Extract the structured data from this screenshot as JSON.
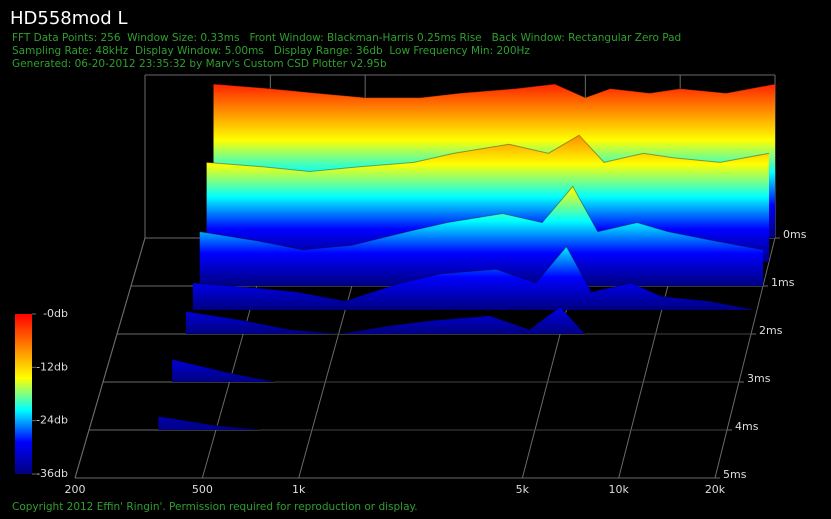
{
  "chart_data": {
    "type": "waterfall",
    "title": "HD558mod L",
    "notes": [
      "FFT Data Points: 256  Window Size: 0.33ms   Front Window: Blackman-Harris 0.25ms Rise   Back Window: Rectangular Zero Pad",
      "Sampling Rate: 48kHz  Display Window: 5.00ms   Display Range: 36db  Low Frequency Min: 200Hz",
      "Generated: 06-20-2012 23:35:32 by Marv's Custom CSD Plotter v2.95b"
    ],
    "footer": "Copyright 2012 Effin' Ringin'. Permission required for reproduction or display.",
    "log_x": true,
    "xlim": [
      200,
      20000
    ],
    "xticks": [
      200,
      500,
      {
        "value": 1000,
        "label": "1k"
      },
      {
        "value": 5000,
        "label": "5k"
      },
      {
        "value": 10000,
        "label": "10k"
      },
      {
        "value": 20000,
        "label": "20k"
      }
    ],
    "zlim": [
      0,
      5
    ],
    "zticks": [
      {
        "value": 0,
        "label": "0ms"
      },
      {
        "value": 1,
        "label": "1ms"
      },
      {
        "value": 2,
        "label": "2ms"
      },
      {
        "value": 3,
        "label": "3ms"
      },
      {
        "value": 4,
        "label": "4ms"
      },
      {
        "value": 5,
        "label": "5ms"
      }
    ],
    "ylim": [
      -36,
      0
    ],
    "yticks": [
      {
        "value": 0,
        "label": "-0db"
      },
      {
        "value": -12,
        "label": "-12db"
      },
      {
        "value": -24,
        "label": "-24db"
      },
      {
        "value": -36,
        "label": "-36db"
      }
    ],
    "colormap": [
      "#00007f",
      "#0000ff",
      "#00ffff",
      "#ffff00",
      "#ff7f00",
      "#ff0000"
    ],
    "x": [
      330,
      500,
      700,
      1000,
      1500,
      2000,
      3000,
      4000,
      5000,
      6000,
      8000,
      10000,
      14000,
      20000
    ],
    "slices": [
      {
        "t": 0,
        "values": [
          -2,
          -3,
          -4,
          -5,
          -5,
          -4,
          -3,
          -2,
          -5,
          -3,
          -4,
          -3,
          -4,
          -2
        ]
      },
      {
        "t": 0.5,
        "values": [
          -14,
          -15,
          -16,
          -15,
          -14,
          -12,
          -10,
          -12,
          -8,
          -14,
          -12,
          -13,
          -14,
          -12
        ]
      },
      {
        "t": 1,
        "values": [
          -24,
          -26,
          -28,
          -27,
          -24,
          -22,
          -20,
          -22,
          -14,
          -24,
          -22,
          -24,
          -26,
          -28
        ]
      },
      {
        "t": 1.5,
        "values": [
          -30,
          -31,
          -32,
          -34,
          -30,
          -28,
          -27,
          -30,
          -22,
          -32,
          -30,
          -33,
          -34,
          -36
        ]
      },
      {
        "t": 2,
        "values": [
          -31,
          -33,
          -35,
          -36,
          -34,
          -33,
          -32,
          -35,
          -30,
          -36,
          -36,
          -36,
          -36,
          -36
        ]
      },
      {
        "t": 3,
        "values": [
          -31,
          -34,
          -36,
          -36,
          -36,
          -36,
          -36,
          -36,
          -36,
          -36,
          -36,
          -36,
          -36,
          -36
        ]
      },
      {
        "t": 4,
        "values": [
          -33,
          -35,
          -36,
          -36,
          -36,
          -36,
          -36,
          -36,
          -36,
          -36,
          -36,
          -36,
          -36,
          -36
        ]
      }
    ]
  }
}
